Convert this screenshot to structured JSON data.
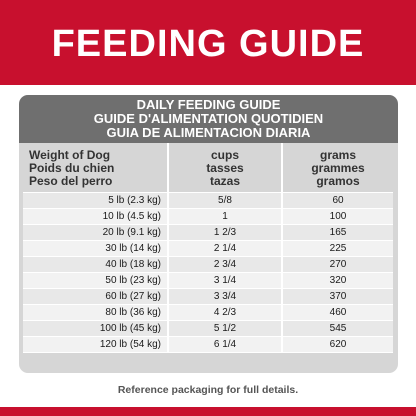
{
  "banner": {
    "title": "FEEDING GUIDE"
  },
  "card": {
    "header": [
      "DAILY FEEDING GUIDE",
      "GUIDE D'ALIMENTATION QUOTIDIEN",
      "GUIA DE ALIMENTACION DIARIA"
    ],
    "columns": [
      [
        "Weight of Dog",
        "Poids du chien",
        "Peso del perro"
      ],
      [
        "cups",
        "tasses",
        "tazas"
      ],
      [
        "grams",
        "grammes",
        "gramos"
      ]
    ],
    "rows": [
      {
        "weight": "5 lb (2.3 kg)",
        "cups": "5/8",
        "grams": "60"
      },
      {
        "weight": "10 lb (4.5 kg)",
        "cups": "1",
        "grams": "100"
      },
      {
        "weight": "20 lb (9.1 kg)",
        "cups": "1 2/3",
        "grams": "165"
      },
      {
        "weight": "30 lb (14 kg)",
        "cups": "2 1/4",
        "grams": "225"
      },
      {
        "weight": "40 lb (18 kg)",
        "cups": "2 3/4",
        "grams": "270"
      },
      {
        "weight": "50 lb (23 kg)",
        "cups": "3 1/4",
        "grams": "320"
      },
      {
        "weight": "60 lb (27 kg)",
        "cups": "3 3/4",
        "grams": "370"
      },
      {
        "weight": "80 lb (36 kg)",
        "cups": "4 2/3",
        "grams": "460"
      },
      {
        "weight": "100 lb (45 kg)",
        "cups": "5 1/2",
        "grams": "545"
      },
      {
        "weight": "120 lb (54 kg)",
        "cups": "6 1/4",
        "grams": "620"
      }
    ]
  },
  "footer": {
    "note": "Reference packaging for full details."
  },
  "colors": {
    "brand_red": "#c8102e",
    "header_gray": "#6f6f6f"
  }
}
